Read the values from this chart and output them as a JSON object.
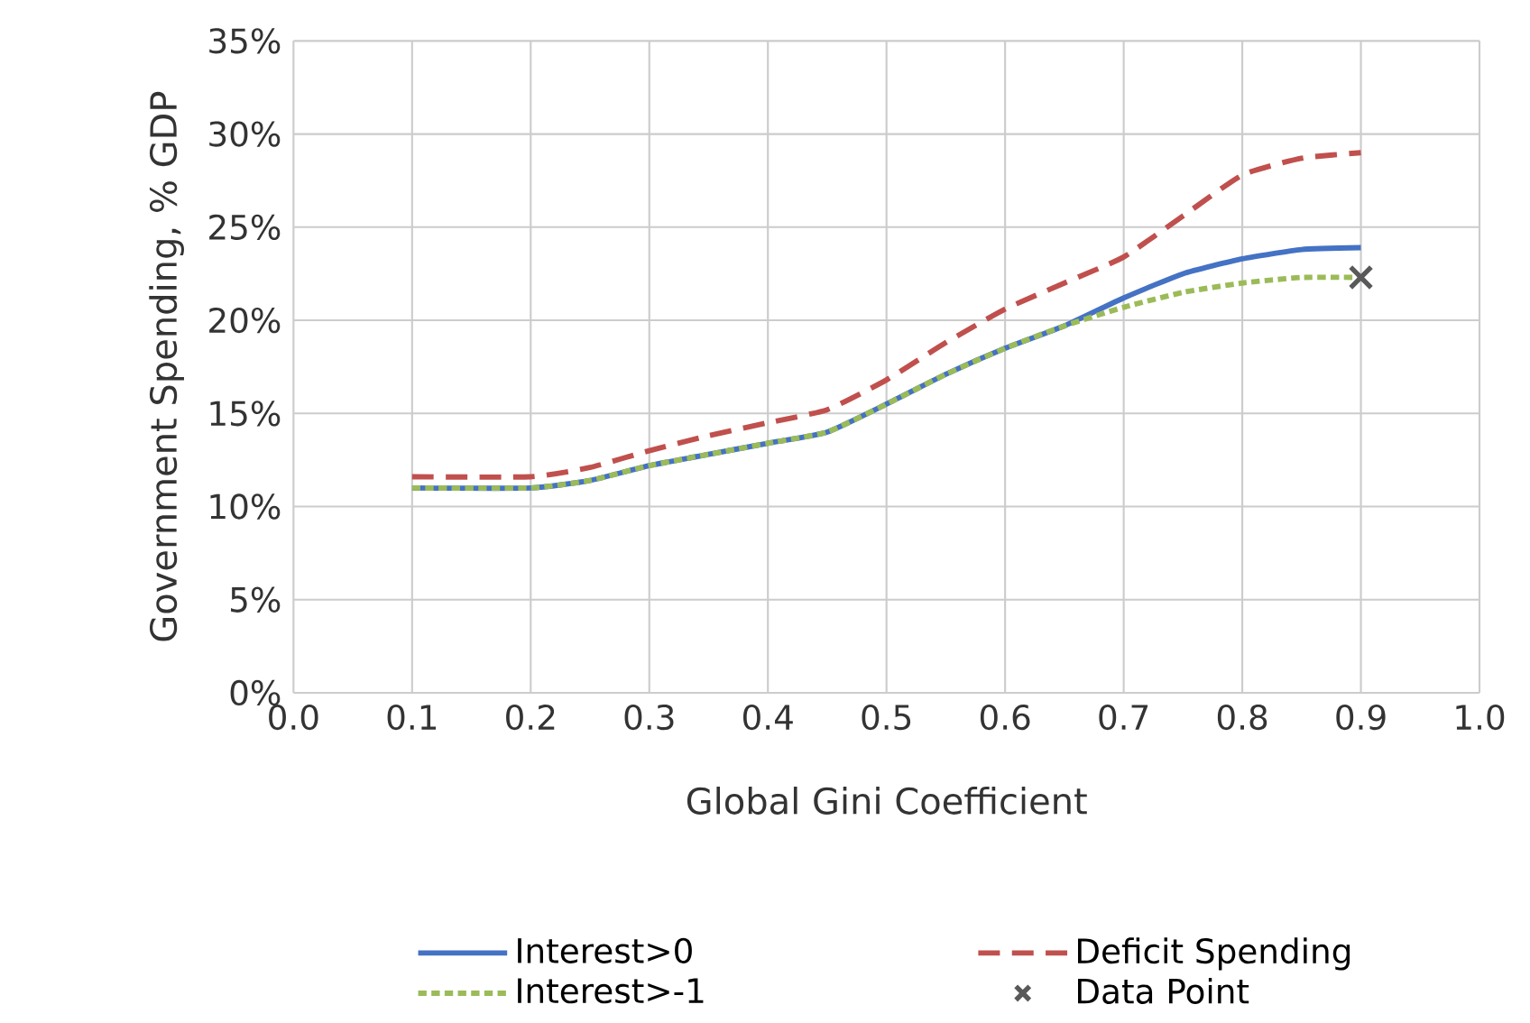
{
  "chart_data": {
    "type": "line",
    "xlabel": "Global Gini Coefficient",
    "ylabel": "Government Spending, % GDP",
    "xlim": [
      0,
      1
    ],
    "ylim": [
      0,
      35
    ],
    "xticks": [
      {
        "value": 0,
        "label": "0.0"
      },
      {
        "value": 0.1,
        "label": "0.1"
      },
      {
        "value": 0.2,
        "label": "0.2"
      },
      {
        "value": 0.3,
        "label": "0.3"
      },
      {
        "value": 0.4,
        "label": "0.4"
      },
      {
        "value": 0.5,
        "label": "0.5"
      },
      {
        "value": 0.6,
        "label": "0.6"
      },
      {
        "value": 0.7,
        "label": "0.7"
      },
      {
        "value": 0.8,
        "label": "0.8"
      },
      {
        "value": 0.9,
        "label": "0.9"
      },
      {
        "value": 1,
        "label": "1.0"
      }
    ],
    "yticks": [
      {
        "value": 0,
        "label": "0%"
      },
      {
        "value": 5,
        "label": "5%"
      },
      {
        "value": 10,
        "label": "10%"
      },
      {
        "value": 15,
        "label": "15%"
      },
      {
        "value": 20,
        "label": "20%"
      },
      {
        "value": 25,
        "label": "25%"
      },
      {
        "value": 30,
        "label": "30%"
      },
      {
        "value": 35,
        "label": "35%"
      }
    ],
    "grid": true,
    "legend": "bottom",
    "series": [
      {
        "name": "Interest>0",
        "color": "#4472c4",
        "line_style": "solid",
        "marker": "none",
        "x": [
          0.1,
          0.2,
          0.25,
          0.3,
          0.35,
          0.4,
          0.45,
          0.5,
          0.55,
          0.6,
          0.65,
          0.7,
          0.75,
          0.8,
          0.85,
          0.9
        ],
        "values": [
          11,
          11,
          11.4,
          12.2,
          12.8,
          13.4,
          14.0,
          15.5,
          17.1,
          18.5,
          19.7,
          21.2,
          22.5,
          23.3,
          23.8,
          23.9
        ]
      },
      {
        "name": "Deficit Spending",
        "color": "#c0504d",
        "line_style": "dashed",
        "marker": "none",
        "x": [
          0.1,
          0.2,
          0.25,
          0.3,
          0.35,
          0.4,
          0.45,
          0.5,
          0.55,
          0.6,
          0.65,
          0.7,
          0.75,
          0.8,
          0.85,
          0.9
        ],
        "values": [
          11.6,
          11.6,
          12.1,
          13.0,
          13.8,
          14.5,
          15.2,
          16.8,
          18.8,
          20.6,
          22.0,
          23.4,
          25.6,
          27.8,
          28.7,
          29.0
        ]
      },
      {
        "name": "Interest>-1",
        "color": "#9bbb59",
        "line_style": "dotted",
        "marker": "none",
        "x": [
          0.1,
          0.2,
          0.25,
          0.3,
          0.35,
          0.4,
          0.45,
          0.5,
          0.55,
          0.6,
          0.65,
          0.7,
          0.75,
          0.8,
          0.85,
          0.9
        ],
        "values": [
          11,
          11,
          11.4,
          12.2,
          12.8,
          13.4,
          14.0,
          15.5,
          17.1,
          18.5,
          19.7,
          20.7,
          21.5,
          22.0,
          22.3,
          22.3
        ]
      },
      {
        "name": "Data Point",
        "type": "scatter",
        "color": "#595959",
        "marker": "cross",
        "x": [
          0.9
        ],
        "values": [
          22.3
        ]
      }
    ]
  }
}
